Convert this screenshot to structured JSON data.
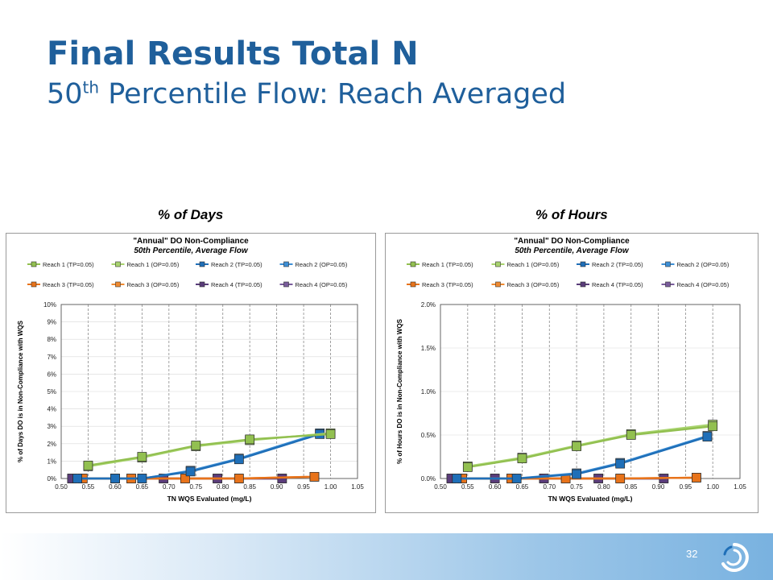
{
  "slide": {
    "title": "Final Results Total N",
    "subtitle_main": "50",
    "subtitle_sup": "th",
    "subtitle_rest": " Percentile Flow: Reach Averaged",
    "page_number": "32"
  },
  "panels": {
    "left_label": "% of Days",
    "right_label": "% of Hours"
  },
  "colors": {
    "title": "#1f5f9b",
    "reach1_tp": "#92c050",
    "reach1_op": "#a9d46f",
    "reach2_tp": "#1f6fb8",
    "reach2_op": "#3d8fd6",
    "reach3_tp": "#e8731a",
    "reach3_op": "#f08a30",
    "reach4_tp": "#5a3c7a",
    "reach4_op": "#7a5c9c"
  },
  "chart_data": [
    {
      "type": "line",
      "title": "\"Annual\" DO Non-Compliance",
      "subtitle": "50th Percentile, Average Flow",
      "xlabel": "TN WQS Evaluated (mg/L)",
      "ylabel": "% of Days DO is in Non-Compliance with WQS",
      "xlim": [
        0.5,
        1.05
      ],
      "ylim": [
        0,
        10
      ],
      "x_ticks": [
        "0.50",
        "0.55",
        "0.60",
        "0.65",
        "0.70",
        "0.75",
        "0.80",
        "0.85",
        "0.90",
        "0.95",
        "1.00",
        "1.05"
      ],
      "y_ticks": [
        "0%",
        "1%",
        "2%",
        "3%",
        "4%",
        "5%",
        "6%",
        "7%",
        "8%",
        "9%",
        "10%"
      ],
      "y_step": 1,
      "grid": "vertical dashed",
      "legend_position": "top",
      "series": [
        {
          "name": "Reach 1 (TP=0.05)",
          "color_key": "reach1_tp",
          "line": true,
          "x": [
            0.55,
            0.65,
            0.75,
            0.85,
            1.0
          ],
          "y": [
            0.75,
            1.25,
            1.9,
            2.25,
            2.55
          ]
        },
        {
          "name": "Reach 1 (OP=0.05)",
          "color_key": "reach1_op",
          "line": true,
          "x": [
            0.55,
            0.65,
            0.75,
            0.85,
            1.0
          ],
          "y": [
            0.7,
            1.2,
            1.85,
            2.2,
            2.6
          ]
        },
        {
          "name": "Reach 2 (TP=0.05)",
          "color_key": "reach2_tp",
          "line": true,
          "x": [
            0.53,
            0.6,
            0.65,
            0.74,
            0.83,
            0.98
          ],
          "y": [
            0,
            0,
            0,
            0.4,
            1.1,
            2.55
          ]
        },
        {
          "name": "Reach 2 (OP=0.05)",
          "color_key": "reach2_op",
          "line": true,
          "x": [
            0.53,
            0.6,
            0.65,
            0.74,
            0.83,
            0.98
          ],
          "y": [
            0,
            0,
            0,
            0.45,
            1.15,
            2.6
          ]
        },
        {
          "name": "Reach 3 (TP=0.05)",
          "color_key": "reach3_tp",
          "line": true,
          "x": [
            0.54,
            0.63,
            0.73,
            0.83,
            0.97
          ],
          "y": [
            0,
            0,
            0,
            0,
            0.1
          ]
        },
        {
          "name": "Reach 3 (OP=0.05)",
          "color_key": "reach3_op",
          "line": true,
          "x": [
            0.54,
            0.63,
            0.73,
            0.83,
            0.97
          ],
          "y": [
            0,
            0,
            0,
            0,
            0.1
          ]
        },
        {
          "name": "Reach 4 (TP=0.05)",
          "color_key": "reach4_tp",
          "line": true,
          "x": [
            0.52,
            0.6,
            0.69,
            0.79,
            0.91
          ],
          "y": [
            0,
            0,
            0,
            0,
            0
          ]
        },
        {
          "name": "Reach 4 (OP=0.05)",
          "color_key": "reach4_op",
          "line": true,
          "x": [
            0.52,
            0.6,
            0.69,
            0.79,
            0.91
          ],
          "y": [
            0,
            0,
            0,
            0,
            0
          ]
        }
      ]
    },
    {
      "type": "line",
      "title": "\"Annual\" DO Non-Compliance",
      "subtitle": "50th Percentile, Average Flow",
      "xlabel": "TN WQS Evaluated (mg/L)",
      "ylabel": "% of Hours DO is in Non-Compliance with WQS",
      "xlim": [
        0.5,
        1.05
      ],
      "ylim": [
        0,
        2.0
      ],
      "x_ticks": [
        "0.50",
        "0.55",
        "0.60",
        "0.65",
        "0.70",
        "0.75",
        "0.80",
        "0.85",
        "0.90",
        "0.95",
        "1.00",
        "1.05"
      ],
      "y_ticks": [
        "0.0%",
        "0.5%",
        "1.0%",
        "1.5%",
        "2.0%"
      ],
      "y_step": 0.5,
      "grid": "vertical dashed",
      "legend_position": "top",
      "series": [
        {
          "name": "Reach 1 (TP=0.05)",
          "color_key": "reach1_tp",
          "line": true,
          "x": [
            0.55,
            0.65,
            0.75,
            0.85,
            1.0
          ],
          "y": [
            0.13,
            0.23,
            0.37,
            0.5,
            0.6
          ]
        },
        {
          "name": "Reach 1 (OP=0.05)",
          "color_key": "reach1_op",
          "line": true,
          "x": [
            0.55,
            0.65,
            0.75,
            0.85,
            1.0
          ],
          "y": [
            0.14,
            0.24,
            0.38,
            0.51,
            0.62
          ]
        },
        {
          "name": "Reach 2 (TP=0.05)",
          "color_key": "reach2_tp",
          "line": true,
          "x": [
            0.53,
            0.64,
            0.75,
            0.83,
            0.99
          ],
          "y": [
            0,
            0,
            0.05,
            0.17,
            0.48
          ]
        },
        {
          "name": "Reach 2 (OP=0.05)",
          "color_key": "reach2_op",
          "line": true,
          "x": [
            0.53,
            0.64,
            0.75,
            0.83,
            0.99
          ],
          "y": [
            0,
            0,
            0.06,
            0.18,
            0.49
          ]
        },
        {
          "name": "Reach 3 (TP=0.05)",
          "color_key": "reach3_tp",
          "line": true,
          "x": [
            0.54,
            0.63,
            0.73,
            0.83,
            0.97
          ],
          "y": [
            0,
            0,
            0,
            0,
            0.01
          ]
        },
        {
          "name": "Reach 3 (OP=0.05)",
          "color_key": "reach3_op",
          "line": true,
          "x": [
            0.54,
            0.63,
            0.73,
            0.83,
            0.97
          ],
          "y": [
            0,
            0,
            0,
            0,
            0.01
          ]
        },
        {
          "name": "Reach 4 (TP=0.05)",
          "color_key": "reach4_tp",
          "line": true,
          "x": [
            0.52,
            0.6,
            0.69,
            0.79,
            0.91
          ],
          "y": [
            0,
            0,
            0,
            0,
            0
          ]
        },
        {
          "name": "Reach 4 (OP=0.05)",
          "color_key": "reach4_op",
          "line": true,
          "x": [
            0.52,
            0.6,
            0.69,
            0.79,
            0.91
          ],
          "y": [
            0,
            0,
            0,
            0,
            0
          ]
        }
      ]
    }
  ]
}
